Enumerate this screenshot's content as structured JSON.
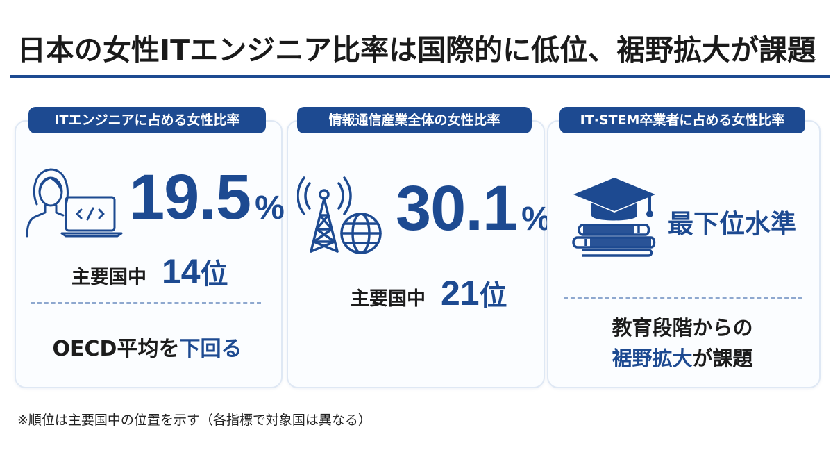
{
  "title": "日本の女性ITエンジニア比率は国際的に低位、裾野拡大が課題",
  "colors": {
    "accent": "#1d4a91",
    "card_border": "#dfe8f4",
    "text": "#1c1c1c"
  },
  "cards": [
    {
      "header": "ITエンジニアに占める女性比率",
      "icon": "woman-with-laptop-icon",
      "value": "19.5",
      "unit": "%",
      "rank_label": "主要国中",
      "rank_value": "14",
      "rank_unit": "位",
      "note_prefix": "OECD平均を",
      "note_highlight": "下回る"
    },
    {
      "header": "情報通信産業全体の女性比率",
      "icon": "radio-tower-globe-icon",
      "value": "30.1",
      "unit": "%",
      "rank_label": "主要国中",
      "rank_value": "21",
      "rank_unit": "位"
    },
    {
      "header": "IT·STEM卒業者に占める女性比率",
      "icon": "graduation-cap-books-icon",
      "status": "最下位水準",
      "note_line1": "教育段階からの",
      "note_highlight": "裾野拡大",
      "note_suffix": "が課題"
    }
  ],
  "footnote": "※順位は主要国中の位置を示す（各指標で対象国は異なる）"
}
